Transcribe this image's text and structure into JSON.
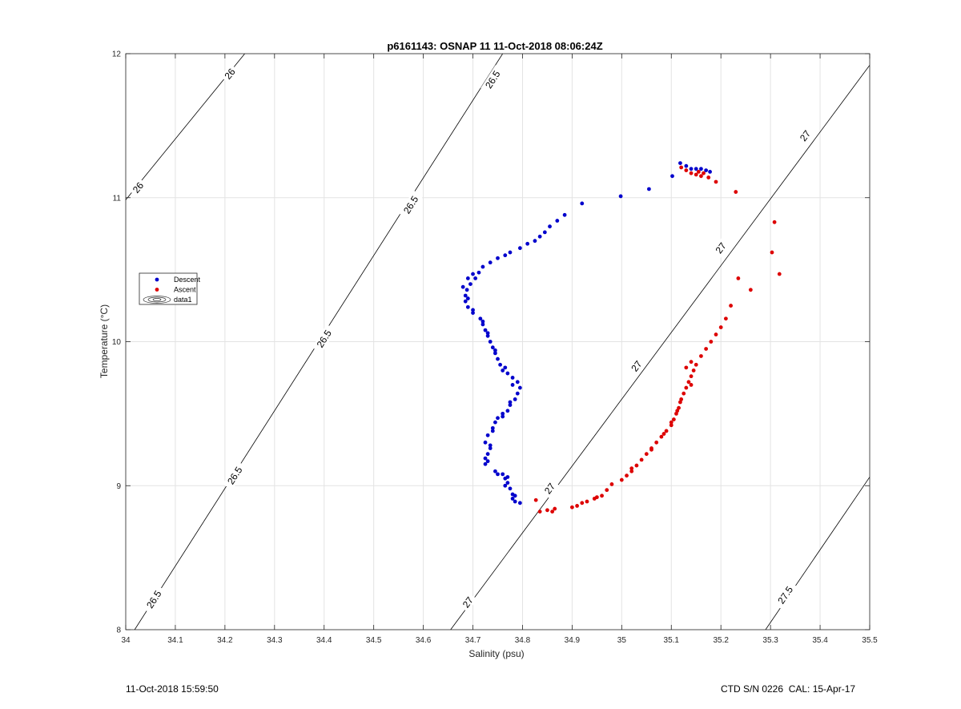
{
  "chart_data": {
    "type": "scatter",
    "title": "p6161143: OSNAP 11 11-Oct-2018 08:06:24Z",
    "xlabel": "Salinity (psu)",
    "ylabel": "Temperature (°C)",
    "xlim": [
      34,
      35.5
    ],
    "ylim": [
      8,
      12
    ],
    "x_ticks": [
      "34",
      "34.1",
      "34.2",
      "34.3",
      "34.4",
      "34.5",
      "34.6",
      "34.7",
      "34.8",
      "34.9",
      "35",
      "35.1",
      "35.2",
      "35.3",
      "35.4",
      "35.5"
    ],
    "y_ticks": [
      "8",
      "9",
      "10",
      "11",
      "12"
    ],
    "grid": true,
    "legend": {
      "placement": "left",
      "entries": [
        "Descent",
        "Ascent",
        "data1"
      ]
    },
    "density_contours": [
      {
        "level": "26",
        "points": [
          [
            34,
            10.985
          ],
          [
            34.24,
            12
          ]
        ],
        "labels": [
          {
            "text": "26",
            "x": 34.025,
            "y": 11.07
          },
          {
            "text": "26",
            "x": 34.21,
            "y": 11.86
          }
        ]
      },
      {
        "level": "26.5",
        "points": [
          [
            34.018,
            8
          ],
          [
            34.76,
            12
          ]
        ],
        "labels": [
          {
            "text": "26.5",
            "x": 34.057,
            "y": 8.21
          },
          {
            "text": "26.5",
            "x": 34.22,
            "y": 9.07
          },
          {
            "text": "26.5",
            "x": 34.4,
            "y": 10.02
          },
          {
            "text": "26.5",
            "x": 34.575,
            "y": 10.95
          },
          {
            "text": "26.5",
            "x": 34.74,
            "y": 11.82
          }
        ]
      },
      {
        "level": "27",
        "points": [
          [
            34.655,
            8
          ],
          [
            35.5,
            11.92
          ]
        ],
        "labels": [
          {
            "text": "27",
            "x": 34.69,
            "y": 8.19
          },
          {
            "text": "27",
            "x": 34.855,
            "y": 8.98
          },
          {
            "text": "27",
            "x": 35.03,
            "y": 9.83
          },
          {
            "text": "27",
            "x": 35.2,
            "y": 10.65
          },
          {
            "text": "27",
            "x": 35.37,
            "y": 11.43
          }
        ]
      },
      {
        "level": "27.5",
        "points": [
          [
            35.29,
            8
          ],
          [
            35.5,
            9.06
          ]
        ],
        "labels": [
          {
            "text": "27.5",
            "x": 35.33,
            "y": 8.24
          }
        ]
      }
    ],
    "series": [
      {
        "name": "Descent",
        "color": "#0000cc",
        "points": [
          [
            34.795,
            8.88
          ],
          [
            34.785,
            8.89
          ],
          [
            34.78,
            8.91
          ],
          [
            34.78,
            8.94
          ],
          [
            34.775,
            8.98
          ],
          [
            34.77,
            9.02
          ],
          [
            34.77,
            9.06
          ],
          [
            34.765,
            9.05
          ],
          [
            34.76,
            9.08
          ],
          [
            34.745,
            9.1
          ],
          [
            34.725,
            9.15
          ],
          [
            34.725,
            9.19
          ],
          [
            34.73,
            9.22
          ],
          [
            34.735,
            9.26
          ],
          [
            34.725,
            9.3
          ],
          [
            34.73,
            9.35
          ],
          [
            34.74,
            9.4
          ],
          [
            34.745,
            9.44
          ],
          [
            34.75,
            9.47
          ],
          [
            34.76,
            9.5
          ],
          [
            34.77,
            9.52
          ],
          [
            34.775,
            9.56
          ],
          [
            34.785,
            9.6
          ],
          [
            34.79,
            9.64
          ],
          [
            34.795,
            9.68
          ],
          [
            34.79,
            9.72
          ],
          [
            34.78,
            9.75
          ],
          [
            34.77,
            9.78
          ],
          [
            34.76,
            9.8
          ],
          [
            34.755,
            9.84
          ],
          [
            34.75,
            9.88
          ],
          [
            34.745,
            9.92
          ],
          [
            34.74,
            9.96
          ],
          [
            34.735,
            10.0
          ],
          [
            34.73,
            10.04
          ],
          [
            34.725,
            10.08
          ],
          [
            34.72,
            10.12
          ],
          [
            34.715,
            10.16
          ],
          [
            34.7,
            10.2
          ],
          [
            34.69,
            10.24
          ],
          [
            34.685,
            10.28
          ],
          [
            34.685,
            10.32
          ],
          [
            34.688,
            10.36
          ],
          [
            34.695,
            10.4
          ],
          [
            34.705,
            10.44
          ],
          [
            34.712,
            10.48
          ],
          [
            34.72,
            10.52
          ],
          [
            34.735,
            10.55
          ],
          [
            34.75,
            10.58
          ],
          [
            34.765,
            10.6
          ],
          [
            34.775,
            10.62
          ],
          [
            34.795,
            10.65
          ],
          [
            34.81,
            10.68
          ],
          [
            34.825,
            10.7
          ],
          [
            34.835,
            10.73
          ],
          [
            34.845,
            10.76
          ],
          [
            34.855,
            10.8
          ],
          [
            34.87,
            10.84
          ],
          [
            34.885,
            10.88
          ],
          [
            34.92,
            10.96
          ],
          [
            34.998,
            11.01
          ],
          [
            35.055,
            11.06
          ],
          [
            35.102,
            11.15
          ],
          [
            35.118,
            11.24
          ],
          [
            35.13,
            11.22
          ],
          [
            35.14,
            11.2
          ],
          [
            35.15,
            11.2
          ],
          [
            35.16,
            11.2
          ],
          [
            35.17,
            11.19
          ],
          [
            35.178,
            11.18
          ],
          [
            34.7,
            10.47
          ],
          [
            34.69,
            10.44
          ],
          [
            34.68,
            10.38
          ],
          [
            34.69,
            10.3
          ],
          [
            34.7,
            10.22
          ],
          [
            34.72,
            10.14
          ],
          [
            34.73,
            10.06
          ],
          [
            34.745,
            9.94
          ],
          [
            34.765,
            9.82
          ],
          [
            34.78,
            9.7
          ],
          [
            34.775,
            9.58
          ],
          [
            34.76,
            9.48
          ],
          [
            34.74,
            9.38
          ],
          [
            34.735,
            9.28
          ],
          [
            34.73,
            9.17
          ],
          [
            34.75,
            9.08
          ],
          [
            34.765,
            9.0
          ],
          [
            34.785,
            8.93
          ]
        ]
      },
      {
        "name": "Ascent",
        "color": "#dd0000",
        "points": [
          [
            34.827,
            8.9
          ],
          [
            34.835,
            8.82
          ],
          [
            34.85,
            8.83
          ],
          [
            34.86,
            8.82
          ],
          [
            34.865,
            8.84
          ],
          [
            34.9,
            8.85
          ],
          [
            34.91,
            8.86
          ],
          [
            34.92,
            8.88
          ],
          [
            34.93,
            8.89
          ],
          [
            34.945,
            8.91
          ],
          [
            34.96,
            8.93
          ],
          [
            34.97,
            8.97
          ],
          [
            34.98,
            9.01
          ],
          [
            35.0,
            9.04
          ],
          [
            35.01,
            9.07
          ],
          [
            35.02,
            9.1
          ],
          [
            35.03,
            9.14
          ],
          [
            35.04,
            9.18
          ],
          [
            35.05,
            9.22
          ],
          [
            35.06,
            9.26
          ],
          [
            35.07,
            9.3
          ],
          [
            35.08,
            9.34
          ],
          [
            35.09,
            9.38
          ],
          [
            35.1,
            9.42
          ],
          [
            35.105,
            9.46
          ],
          [
            35.11,
            9.5
          ],
          [
            35.115,
            9.54
          ],
          [
            35.12,
            9.6
          ],
          [
            35.125,
            9.64
          ],
          [
            35.13,
            9.68
          ],
          [
            35.135,
            9.72
          ],
          [
            35.14,
            9.76
          ],
          [
            35.145,
            9.8
          ],
          [
            35.15,
            9.84
          ],
          [
            35.14,
            9.86
          ],
          [
            35.13,
            9.82
          ],
          [
            35.14,
            9.7
          ],
          [
            35.16,
            9.9
          ],
          [
            35.17,
            9.95
          ],
          [
            35.18,
            10.0
          ],
          [
            35.19,
            10.05
          ],
          [
            35.2,
            10.1
          ],
          [
            35.21,
            10.16
          ],
          [
            35.22,
            10.25
          ],
          [
            35.235,
            10.44
          ],
          [
            35.26,
            10.36
          ],
          [
            35.303,
            10.62
          ],
          [
            35.308,
            10.83
          ],
          [
            35.318,
            10.47
          ],
          [
            35.23,
            11.04
          ],
          [
            35.19,
            11.11
          ],
          [
            35.175,
            11.14
          ],
          [
            35.16,
            11.15
          ],
          [
            35.15,
            11.16
          ],
          [
            35.14,
            11.17
          ],
          [
            35.13,
            11.19
          ],
          [
            35.12,
            11.21
          ],
          [
            35.165,
            11.17
          ],
          [
            35.155,
            11.18
          ],
          [
            34.95,
            8.92
          ],
          [
            35.02,
            9.12
          ],
          [
            35.06,
            9.25
          ],
          [
            35.085,
            9.36
          ],
          [
            35.1,
            9.44
          ],
          [
            35.112,
            9.52
          ],
          [
            35.118,
            9.58
          ]
        ]
      }
    ]
  },
  "footer": {
    "left": "11-Oct-2018 15:59:50",
    "right": "CTD S/N 0226  CAL: 15-Apr-17"
  }
}
